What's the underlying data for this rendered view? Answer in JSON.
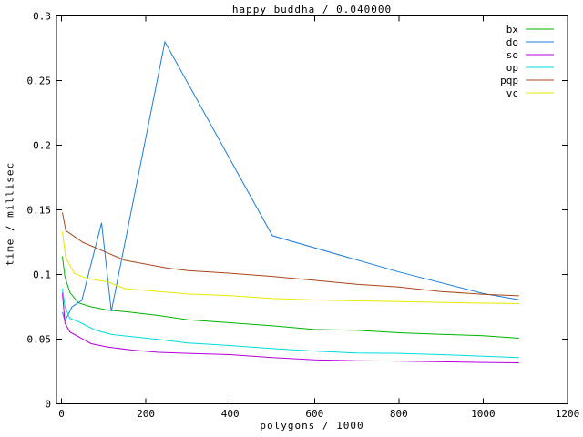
{
  "window": {
    "background": "#ffffff",
    "axis_color": "#000000",
    "text_color": "#000000"
  },
  "chart_data": {
    "type": "line",
    "title": "happy buddha / 0.040000",
    "xlabel": "polygons / 1000",
    "ylabel": "time / millisec",
    "xlim": [
      -12,
      1200
    ],
    "ylim": [
      0,
      0.3
    ],
    "xticks": [
      0,
      200,
      400,
      600,
      800,
      1000,
      1200
    ],
    "xtick_labels": [
      "0",
      "200",
      "400",
      "600",
      "800",
      "1000",
      "1200"
    ],
    "yticks": [
      0,
      0.05,
      0.1,
      0.15,
      0.2,
      0.25,
      0.3
    ],
    "ytick_labels": [
      "0",
      "0.05",
      "0.1",
      "0.15",
      "0.2",
      "0.25",
      "0.3"
    ],
    "grid": false,
    "legend_position": "top-right-inside",
    "series": [
      {
        "name": "bx",
        "color": "#00b400",
        "points": [
          [
            2,
            0.114
          ],
          [
            8,
            0.098
          ],
          [
            20,
            0.086
          ],
          [
            40,
            0.078
          ],
          [
            70,
            0.075
          ],
          [
            110,
            0.0725
          ],
          [
            160,
            0.071
          ],
          [
            230,
            0.0683
          ],
          [
            300,
            0.065
          ],
          [
            400,
            0.0627
          ],
          [
            500,
            0.0603
          ],
          [
            600,
            0.0575
          ],
          [
            700,
            0.0568
          ],
          [
            800,
            0.0549
          ],
          [
            900,
            0.0537
          ],
          [
            1000,
            0.0526
          ],
          [
            1085,
            0.0507
          ]
        ]
      },
      {
        "name": "do",
        "color": "#1c7cdc",
        "points": [
          [
            2,
            0.071
          ],
          [
            8,
            0.064
          ],
          [
            25,
            0.075
          ],
          [
            48,
            0.08
          ],
          [
            95,
            0.14
          ],
          [
            118,
            0.0715
          ],
          [
            245,
            0.28
          ],
          [
            500,
            0.13
          ],
          [
            800,
            0.102
          ],
          [
            1000,
            0.0853
          ],
          [
            1085,
            0.0805
          ]
        ]
      },
      {
        "name": "so",
        "color": "#b400dc",
        "points": [
          [
            2,
            0.086
          ],
          [
            8,
            0.0625
          ],
          [
            20,
            0.0555
          ],
          [
            45,
            0.051
          ],
          [
            70,
            0.0465
          ],
          [
            110,
            0.0438
          ],
          [
            170,
            0.0415
          ],
          [
            230,
            0.0398
          ],
          [
            300,
            0.039
          ],
          [
            400,
            0.038
          ],
          [
            500,
            0.0357
          ],
          [
            600,
            0.034
          ],
          [
            700,
            0.0333
          ],
          [
            800,
            0.033
          ],
          [
            900,
            0.0325
          ],
          [
            1000,
            0.032
          ],
          [
            1085,
            0.0317
          ]
        ]
      },
      {
        "name": "op",
        "color": "#00dcdc",
        "points": [
          [
            2,
            0.089
          ],
          [
            8,
            0.075
          ],
          [
            20,
            0.066
          ],
          [
            40,
            0.0635
          ],
          [
            80,
            0.057
          ],
          [
            120,
            0.0535
          ],
          [
            230,
            0.0497
          ],
          [
            300,
            0.047
          ],
          [
            400,
            0.0451
          ],
          [
            500,
            0.0427
          ],
          [
            600,
            0.0408
          ],
          [
            700,
            0.0392
          ],
          [
            800,
            0.039
          ],
          [
            900,
            0.038
          ],
          [
            1000,
            0.0368
          ],
          [
            1085,
            0.0357
          ]
        ]
      },
      {
        "name": "pqp",
        "color": "#a8461c",
        "points": [
          [
            2,
            0.148
          ],
          [
            10,
            0.134
          ],
          [
            50,
            0.125
          ],
          [
            100,
            0.118
          ],
          [
            150,
            0.111
          ],
          [
            200,
            0.108
          ],
          [
            250,
            0.105
          ],
          [
            300,
            0.103
          ],
          [
            400,
            0.101
          ],
          [
            500,
            0.0985
          ],
          [
            600,
            0.0955
          ],
          [
            700,
            0.0924
          ],
          [
            800,
            0.0903
          ],
          [
            900,
            0.0868
          ],
          [
            1000,
            0.0847
          ],
          [
            1085,
            0.0835
          ]
        ]
      },
      {
        "name": "vc",
        "color": "#e8e800",
        "points": [
          [
            2,
            0.133
          ],
          [
            10,
            0.113
          ],
          [
            30,
            0.101
          ],
          [
            60,
            0.097
          ],
          [
            110,
            0.0943
          ],
          [
            150,
            0.089
          ],
          [
            200,
            0.0877
          ],
          [
            300,
            0.0849
          ],
          [
            400,
            0.0836
          ],
          [
            500,
            0.0814
          ],
          [
            600,
            0.0803
          ],
          [
            800,
            0.079
          ],
          [
            1000,
            0.0778
          ],
          [
            1085,
            0.0775
          ]
        ]
      }
    ]
  }
}
